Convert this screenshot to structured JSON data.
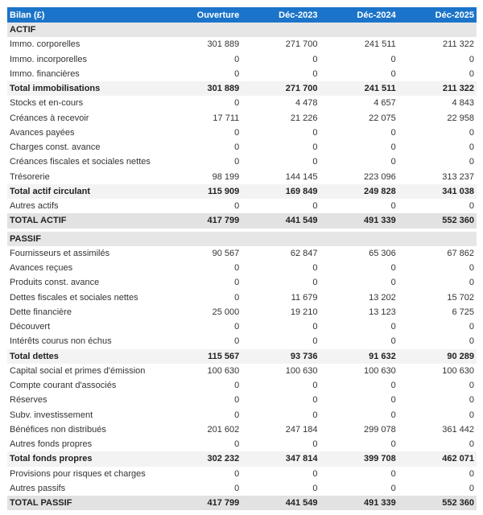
{
  "header": {
    "title": "Bilan (£)",
    "columns": [
      "Ouverture",
      "Déc-2023",
      "Déc-2024",
      "Déc-2025"
    ]
  },
  "colors": {
    "header_bg": "#1b74c9",
    "section_bg": "#e6e6e6",
    "total_bg": "#f3f3f3"
  },
  "actif": [
    {
      "type": "section",
      "label": "ACTIF",
      "values": []
    },
    {
      "type": "normal",
      "label": "Immo. corporelles",
      "values": [
        "301 889",
        "271 700",
        "241 511",
        "211 322"
      ]
    },
    {
      "type": "normal",
      "label": "Immo. incorporelles",
      "values": [
        "0",
        "0",
        "0",
        "0"
      ]
    },
    {
      "type": "normal",
      "label": "Immo. financières",
      "values": [
        "0",
        "0",
        "0",
        "0"
      ]
    },
    {
      "type": "total",
      "label": "Total immobilisations",
      "values": [
        "301 889",
        "271 700",
        "241 511",
        "211 322"
      ]
    },
    {
      "type": "normal",
      "label": "Stocks et en-cours",
      "values": [
        "0",
        "4 478",
        "4 657",
        "4 843"
      ]
    },
    {
      "type": "normal",
      "label": "Créances à recevoir",
      "values": [
        "17 711",
        "21 226",
        "22 075",
        "22 958"
      ]
    },
    {
      "type": "normal",
      "label": "Avances payées",
      "values": [
        "0",
        "0",
        "0",
        "0"
      ]
    },
    {
      "type": "normal",
      "label": "Charges const. avance",
      "values": [
        "0",
        "0",
        "0",
        "0"
      ]
    },
    {
      "type": "normal",
      "label": "Créances fiscales et sociales nettes",
      "values": [
        "0",
        "0",
        "0",
        "0"
      ]
    },
    {
      "type": "normal",
      "label": "Trésorerie",
      "values": [
        "98 199",
        "144 145",
        "223 096",
        "313 237"
      ]
    },
    {
      "type": "total",
      "label": "Total actif circulant",
      "values": [
        "115 909",
        "169 849",
        "249 828",
        "341 038"
      ]
    },
    {
      "type": "normal",
      "label": "Autres actifs",
      "values": [
        "0",
        "0",
        "0",
        "0"
      ]
    },
    {
      "type": "grand",
      "label": "TOTAL ACTIF",
      "values": [
        "417 799",
        "441 549",
        "491 339",
        "552 360"
      ]
    }
  ],
  "passif": [
    {
      "type": "section",
      "label": "PASSIF",
      "values": []
    },
    {
      "type": "normal",
      "label": "Fournisseurs et assimilés",
      "values": [
        "90 567",
        "62 847",
        "65 306",
        "67 862"
      ]
    },
    {
      "type": "normal",
      "label": "Avances reçues",
      "values": [
        "0",
        "0",
        "0",
        "0"
      ]
    },
    {
      "type": "normal",
      "label": "Produits const. avance",
      "values": [
        "0",
        "0",
        "0",
        "0"
      ]
    },
    {
      "type": "normal",
      "label": "Dettes fiscales et sociales nettes",
      "values": [
        "0",
        "11 679",
        "13 202",
        "15 702"
      ]
    },
    {
      "type": "normal",
      "label": "Dette financière",
      "values": [
        "25 000",
        "19 210",
        "13 123",
        "6 725"
      ]
    },
    {
      "type": "normal",
      "label": "Découvert",
      "values": [
        "0",
        "0",
        "0",
        "0"
      ]
    },
    {
      "type": "normal",
      "label": "Intérêts courus non échus",
      "values": [
        "0",
        "0",
        "0",
        "0"
      ]
    },
    {
      "type": "total",
      "label": "Total dettes",
      "values": [
        "115 567",
        "93 736",
        "91 632",
        "90 289"
      ]
    },
    {
      "type": "normal",
      "label": "Capital social et primes d'émission",
      "values": [
        "100 630",
        "100 630",
        "100 630",
        "100 630"
      ]
    },
    {
      "type": "normal",
      "label": "Compte courant d'associés",
      "values": [
        "0",
        "0",
        "0",
        "0"
      ]
    },
    {
      "type": "normal",
      "label": "Réserves",
      "values": [
        "0",
        "0",
        "0",
        "0"
      ]
    },
    {
      "type": "normal",
      "label": "Subv. investissement",
      "values": [
        "0",
        "0",
        "0",
        "0"
      ]
    },
    {
      "type": "normal",
      "label": "Bénéfices non distribués",
      "values": [
        "201 602",
        "247 184",
        "299 078",
        "361 442"
      ]
    },
    {
      "type": "normal",
      "label": "Autres fonds propres",
      "values": [
        "0",
        "0",
        "0",
        "0"
      ]
    },
    {
      "type": "total",
      "label": "Total fonds propres",
      "values": [
        "302 232",
        "347 814",
        "399 708",
        "462 071"
      ]
    },
    {
      "type": "normal",
      "label": "Provisions pour risques et charges",
      "values": [
        "0",
        "0",
        "0",
        "0"
      ]
    },
    {
      "type": "normal",
      "label": "Autres passifs",
      "values": [
        "0",
        "0",
        "0",
        "0"
      ]
    },
    {
      "type": "grand",
      "label": "TOTAL PASSIF",
      "values": [
        "417 799",
        "441 549",
        "491 339",
        "552 360"
      ]
    }
  ]
}
